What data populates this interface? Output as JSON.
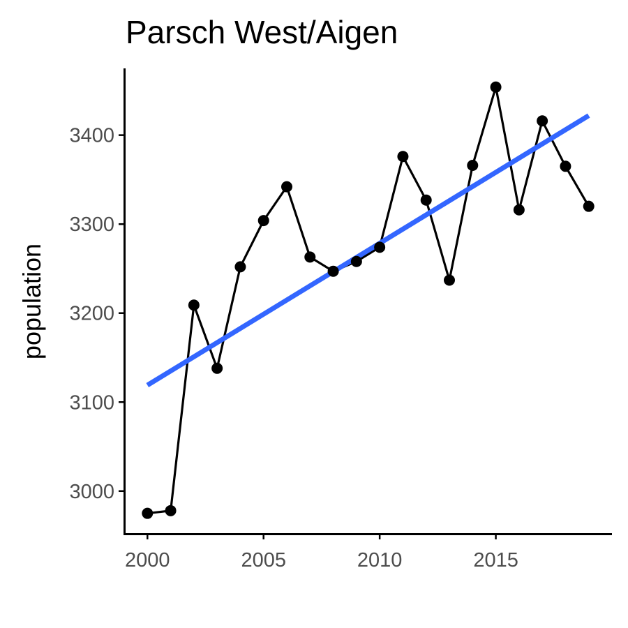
{
  "chart_data": {
    "type": "line",
    "title": "Parsch West/Aigen",
    "xlabel": "",
    "ylabel": "population",
    "xlim": [
      1999,
      2020
    ],
    "ylim": [
      2952,
      3475
    ],
    "x_ticks": [
      2000,
      2005,
      2010,
      2015
    ],
    "y_ticks": [
      3000,
      3100,
      3200,
      3300,
      3400
    ],
    "grid": false,
    "series": [
      {
        "x": [
          2000,
          2001,
          2002,
          2003,
          2004,
          2005,
          2006,
          2007,
          2008,
          2009,
          2010,
          2011,
          2012,
          2013,
          2014,
          2015,
          2016,
          2017,
          2018,
          2019
        ],
        "y": [
          2975,
          2978,
          3209,
          3138,
          3252,
          3304,
          3342,
          3263,
          3247,
          3258,
          3274,
          3376,
          3327,
          3237,
          3366,
          3454,
          3316,
          3416,
          3365,
          3320
        ],
        "color": "#000000",
        "marker": "circle"
      }
    ],
    "trend_line": {
      "x": [
        2000,
        2019
      ],
      "y": [
        3119,
        3422
      ],
      "color": "#3366FF"
    }
  }
}
